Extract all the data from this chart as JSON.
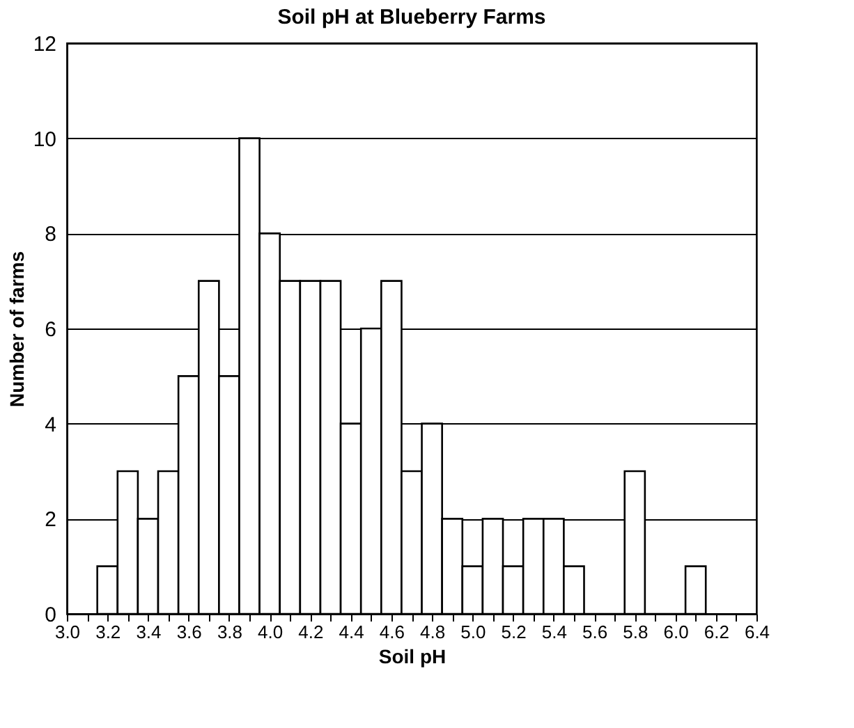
{
  "chart_data": {
    "type": "histogram",
    "title": "Soil pH at Blueberry Farms",
    "xlabel": "Soil pH",
    "ylabel": "Number of farms",
    "bins": [
      3.15,
      3.25,
      3.35,
      3.45,
      3.55,
      3.65,
      3.75,
      3.85,
      3.95,
      4.05,
      4.15,
      4.25,
      4.35,
      4.45,
      4.55,
      4.65,
      4.75,
      4.85,
      4.95,
      5.05,
      5.15,
      5.25,
      5.35,
      5.45,
      5.55,
      5.65,
      5.75,
      5.85,
      5.95,
      6.05,
      6.15
    ],
    "values": [
      1,
      3,
      2,
      3,
      5,
      7,
      5,
      10,
      8,
      7,
      7,
      7,
      4,
      6,
      7,
      3,
      4,
      2,
      1,
      2,
      1,
      2,
      2,
      1,
      0,
      0,
      3,
      0,
      0,
      1
    ],
    "xlim": [
      3.0,
      6.4
    ],
    "xticks": [
      {
        "value": 3.0,
        "label": "3.0"
      },
      {
        "value": 3.1,
        "label": null
      },
      {
        "value": 3.2,
        "label": "3.2"
      },
      {
        "value": 3.3,
        "label": null
      },
      {
        "value": 3.4,
        "label": "3.4"
      },
      {
        "value": 3.5,
        "label": null
      },
      {
        "value": 3.6,
        "label": "3.6"
      },
      {
        "value": 3.7,
        "label": null
      },
      {
        "value": 3.8,
        "label": "3.8"
      },
      {
        "value": 3.9,
        "label": null
      },
      {
        "value": 4.0,
        "label": "4.0"
      },
      {
        "value": 4.1,
        "label": null
      },
      {
        "value": 4.2,
        "label": "4.2"
      },
      {
        "value": 4.3,
        "label": null
      },
      {
        "value": 4.4,
        "label": "4.4"
      },
      {
        "value": 4.5,
        "label": null
      },
      {
        "value": 4.6,
        "label": "4.6"
      },
      {
        "value": 4.7,
        "label": null
      },
      {
        "value": 4.8,
        "label": "4.8"
      },
      {
        "value": 4.9,
        "label": null
      },
      {
        "value": 5.0,
        "label": "5.0"
      },
      {
        "value": 5.1,
        "label": null
      },
      {
        "value": 5.2,
        "label": "5.2"
      },
      {
        "value": 5.3,
        "label": null
      },
      {
        "value": 5.4,
        "label": "5.4"
      },
      {
        "value": 5.5,
        "label": null
      },
      {
        "value": 5.6,
        "label": "5.6"
      },
      {
        "value": 5.7,
        "label": null
      },
      {
        "value": 5.8,
        "label": "5.8"
      },
      {
        "value": 5.9,
        "label": null
      },
      {
        "value": 6.0,
        "label": "6.0"
      },
      {
        "value": 6.1,
        "label": null
      },
      {
        "value": 6.2,
        "label": "6.2"
      },
      {
        "value": 6.3,
        "label": null
      },
      {
        "value": 6.4,
        "label": "6.4"
      }
    ],
    "ylim": [
      0,
      12
    ],
    "yticks": [
      0,
      2,
      4,
      6,
      8,
      10,
      12
    ],
    "grid": "y"
  }
}
